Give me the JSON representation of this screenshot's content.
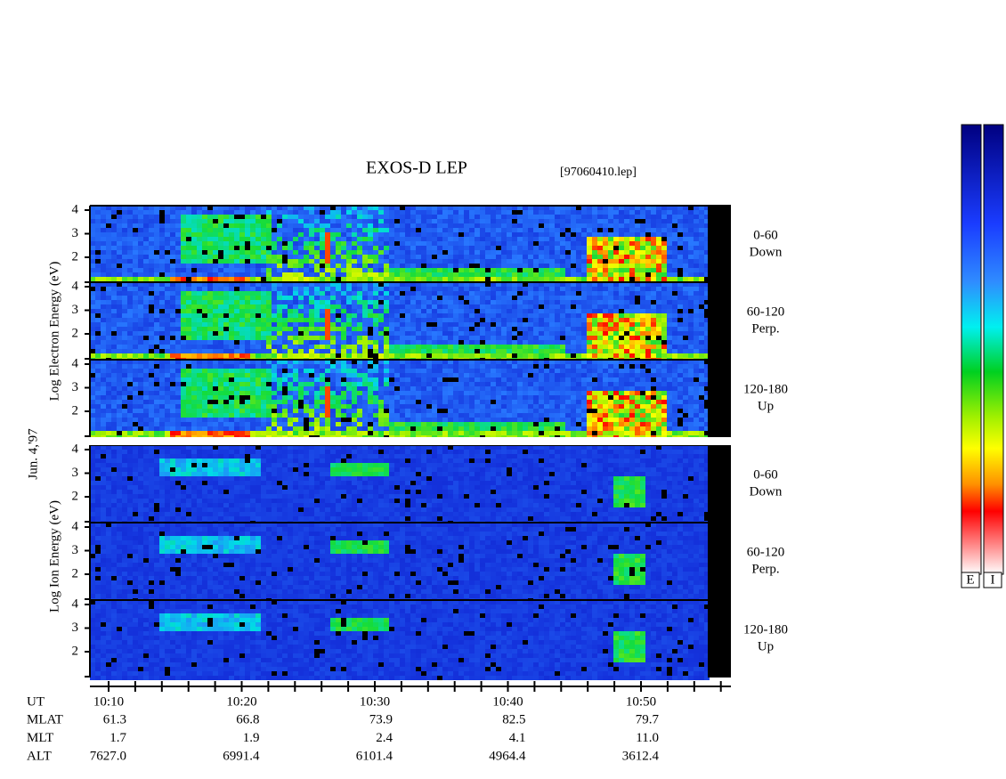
{
  "title": "EXOS-D LEP",
  "file": "[97060410.lep]",
  "electron_axis_label": "Log Electron Energy (eV)",
  "ion_axis_label": "Log Ion Energy (eV)",
  "date": "Jun. 4,'97",
  "panels": [
    {
      "yticks": [
        "4",
        "3",
        "2"
      ],
      "angle": "0-60",
      "direction": "Down"
    },
    {
      "yticks": [
        "4",
        "3",
        "2"
      ],
      "angle": "60-120",
      "direction": "Perp."
    },
    {
      "yticks": [
        "4",
        "3",
        "2"
      ],
      "angle": "120-180",
      "direction": "Up"
    },
    {
      "yticks": [
        "4",
        "3",
        "2"
      ],
      "angle": "0-60",
      "direction": "Down"
    },
    {
      "yticks": [
        "4",
        "3",
        "2"
      ],
      "angle": "60-120",
      "direction": "Perp."
    },
    {
      "yticks": [
        "4",
        "3",
        "2"
      ],
      "angle": "120-180",
      "direction": "Up"
    }
  ],
  "time_axis": {
    "label": "UT",
    "ticks": [
      "10:10",
      "10:20",
      "10:30",
      "10:40",
      "10:50"
    ]
  },
  "ephemeris": [
    {
      "label": "MLAT",
      "values": [
        "61.3",
        "66.8",
        "73.9",
        "82.5",
        "79.7"
      ]
    },
    {
      "label": "MLT",
      "values": [
        "1.7",
        "1.9",
        "2.4",
        "4.1",
        "11.0"
      ]
    },
    {
      "label": "ALT",
      "values": [
        "7627.0",
        "6991.4",
        "6101.4",
        "4964.4",
        "3612.4"
      ]
    }
  ],
  "colorbars": [
    "E",
    "I"
  ]
}
